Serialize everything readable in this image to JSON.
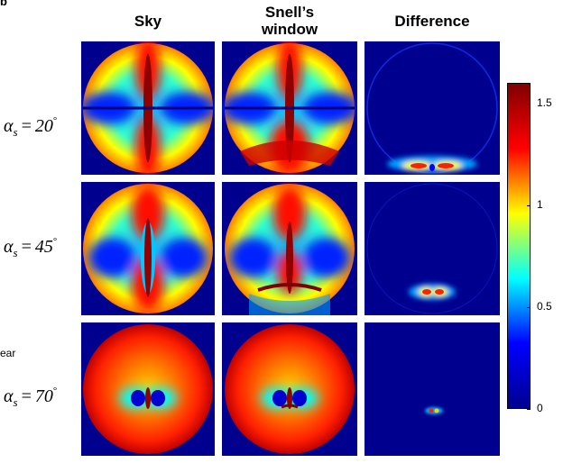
{
  "top_mark": "b",
  "headers": {
    "sky": "Sky",
    "snell_line1": "Snell’s",
    "snell_line2": "window",
    "difference": "Difference"
  },
  "rows": [
    {
      "symbol": "α",
      "sub": "s",
      "value": "20",
      "deg": "°"
    },
    {
      "symbol": "α",
      "sub": "s",
      "value": "45",
      "deg": "°"
    },
    {
      "symbol": "α",
      "sub": "s",
      "value": "70",
      "deg": "°"
    }
  ],
  "cutoff_text": "ear",
  "colorbar": {
    "ticks": [
      "1.5",
      "1",
      "0.5",
      "0"
    ],
    "tick_values": [
      1.5,
      1.0,
      0.5,
      0.0
    ],
    "max": 1.6,
    "colors": [
      "#00008f",
      "#0000ff",
      "#00ffff",
      "#ffff00",
      "#ff0000",
      "#800000"
    ]
  }
}
